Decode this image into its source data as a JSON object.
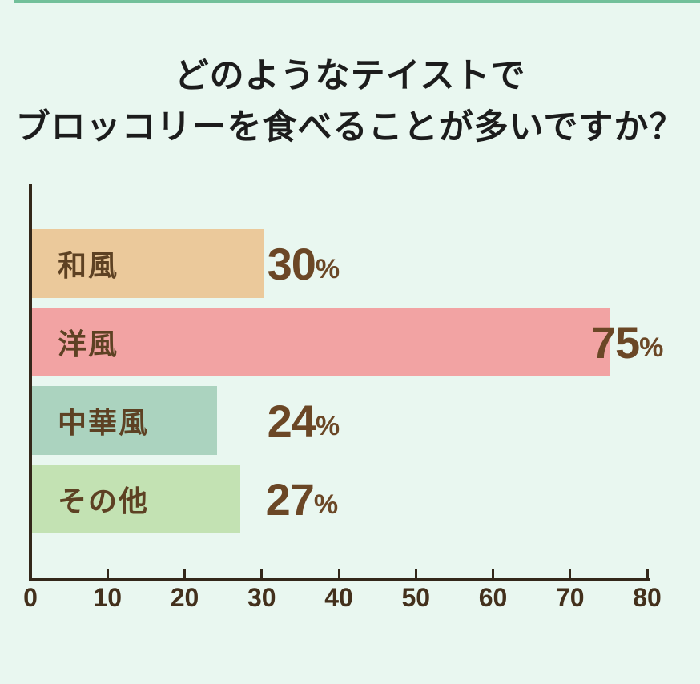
{
  "page": {
    "background_color": "#e9f7f0",
    "top_strip_color": "#72c09a"
  },
  "title": {
    "line1": "どのようなテイストで",
    "line2": "ブロッコリーを食べることが多いですか？"
  },
  "chart_data": {
    "type": "bar",
    "orientation": "horizontal",
    "title": "どのようなテイストでブロッコリーを食べることが多いですか？",
    "categories": [
      "和風",
      "洋風",
      "中華風",
      "その他"
    ],
    "values": [
      30,
      75,
      24,
      27
    ],
    "value_unit": "%",
    "bar_colors": [
      "#ebc99b",
      "#f2a3a3",
      "#abd3bf",
      "#c3e2b3"
    ],
    "x_ticks": [
      "0",
      "10",
      "20",
      "30",
      "40",
      "50",
      "60",
      "70",
      "80"
    ],
    "xlim": [
      0,
      80
    ],
    "xlabel": "",
    "ylabel": "",
    "grid": false,
    "legend": false,
    "axis_color": "#33271a",
    "value_label_color": "#6b4726",
    "category_label_color": "#5d4123",
    "value_label_positions": [
      30.5,
      72.5,
      30.5,
      30.3
    ]
  }
}
